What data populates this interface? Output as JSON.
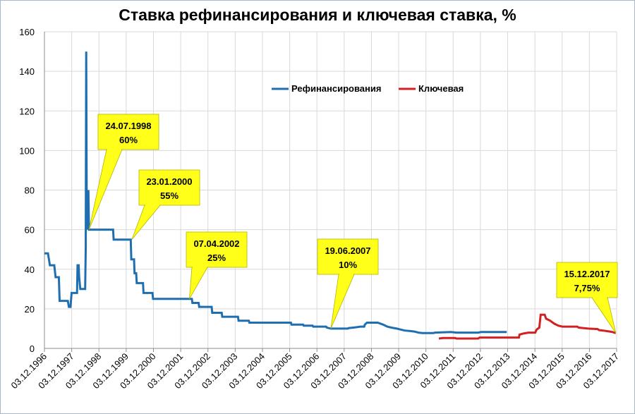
{
  "chart_data": {
    "type": "line",
    "title": "Ставка рефинансирования и ключевая ставка, %",
    "ylim": [
      0,
      160
    ],
    "yticks": [
      0,
      20,
      40,
      60,
      80,
      100,
      120,
      140,
      160
    ],
    "xlim": [
      1996.92,
      2018.0
    ],
    "xtick_labels": [
      "03.12.1996",
      "03.12.1997",
      "03.12.1998",
      "03.12.1999",
      "03.12.2000",
      "03.12.2001",
      "03.12.2002",
      "03.12.2003",
      "03.12.2004",
      "03.12.2005",
      "03.12.2006",
      "03.12.2007",
      "03.12.2008",
      "03.12.2009",
      "03.12.2010",
      "03.12.2011",
      "03.12.2012",
      "03.12.2013",
      "03.12.2014",
      "03.12.2015",
      "03.12.2016",
      "03.12.2017"
    ],
    "grid": true,
    "legend_position": "top-right",
    "series": [
      {
        "name": "Рефинансирования",
        "color": "#1f6fb0",
        "points": [
          [
            1996.92,
            48
          ],
          [
            1997.05,
            48
          ],
          [
            1997.12,
            42
          ],
          [
            1997.28,
            42
          ],
          [
            1997.33,
            36
          ],
          [
            1997.45,
            36
          ],
          [
            1997.48,
            24
          ],
          [
            1997.78,
            24
          ],
          [
            1997.82,
            21
          ],
          [
            1997.88,
            21
          ],
          [
            1997.92,
            28
          ],
          [
            1998.12,
            28
          ],
          [
            1998.14,
            42
          ],
          [
            1998.18,
            42
          ],
          [
            1998.2,
            36
          ],
          [
            1998.24,
            30
          ],
          [
            1998.42,
            30
          ],
          [
            1998.44,
            50
          ],
          [
            1998.46,
            150
          ],
          [
            1998.48,
            60
          ],
          [
            1998.5,
            80
          ],
          [
            1998.52,
            60
          ],
          [
            1998.54,
            80
          ],
          [
            1998.56,
            60
          ],
          [
            1999.45,
            60
          ],
          [
            1999.47,
            55
          ],
          [
            2000.1,
            55
          ],
          [
            2000.12,
            45
          ],
          [
            2000.22,
            45
          ],
          [
            2000.24,
            38
          ],
          [
            2000.3,
            38
          ],
          [
            2000.32,
            33
          ],
          [
            2000.55,
            33
          ],
          [
            2000.57,
            28
          ],
          [
            2000.9,
            28
          ],
          [
            2000.92,
            25
          ],
          [
            2002.35,
            25
          ],
          [
            2002.37,
            23
          ],
          [
            2002.6,
            23
          ],
          [
            2002.62,
            21
          ],
          [
            2003.08,
            21
          ],
          [
            2003.1,
            18
          ],
          [
            2003.45,
            18
          ],
          [
            2003.47,
            16
          ],
          [
            2004.05,
            16
          ],
          [
            2004.07,
            14
          ],
          [
            2004.45,
            14
          ],
          [
            2004.47,
            13
          ],
          [
            2006.0,
            13
          ],
          [
            2006.02,
            12
          ],
          [
            2006.45,
            12
          ],
          [
            2006.47,
            11.5
          ],
          [
            2006.8,
            11.5
          ],
          [
            2006.82,
            11
          ],
          [
            2007.3,
            11
          ],
          [
            2007.32,
            10.5
          ],
          [
            2007.47,
            10
          ],
          [
            2008.1,
            10
          ],
          [
            2008.12,
            10.25
          ],
          [
            2008.3,
            10.5
          ],
          [
            2008.45,
            10.75
          ],
          [
            2008.55,
            11
          ],
          [
            2008.7,
            11
          ],
          [
            2008.72,
            12
          ],
          [
            2008.8,
            13
          ],
          [
            2009.2,
            13
          ],
          [
            2009.4,
            12
          ],
          [
            2009.55,
            11
          ],
          [
            2009.7,
            10.5
          ],
          [
            2009.9,
            10
          ],
          [
            2010.05,
            9.5
          ],
          [
            2010.2,
            9
          ],
          [
            2010.4,
            8.75
          ],
          [
            2010.55,
            8.5
          ],
          [
            2010.7,
            8
          ],
          [
            2010.85,
            7.75
          ],
          [
            2011.25,
            7.75
          ],
          [
            2011.3,
            8
          ],
          [
            2011.9,
            8.25
          ],
          [
            2012.1,
            8
          ],
          [
            2012.9,
            8
          ],
          [
            2013.0,
            8.25
          ],
          [
            2013.95,
            8.25
          ]
        ]
      },
      {
        "name": "Ключевая",
        "color": "#d32020",
        "points": [
          [
            2011.45,
            5
          ],
          [
            2011.6,
            5.25
          ],
          [
            2012.05,
            5.25
          ],
          [
            2012.1,
            5
          ],
          [
            2012.9,
            5
          ],
          [
            2012.95,
            5.5
          ],
          [
            2014.4,
            5.5
          ],
          [
            2014.42,
            7
          ],
          [
            2014.55,
            7.5
          ],
          [
            2014.75,
            8
          ],
          [
            2015.0,
            8
          ],
          [
            2015.05,
            9.5
          ],
          [
            2015.15,
            10.5
          ],
          [
            2015.2,
            17
          ],
          [
            2015.35,
            17
          ],
          [
            2015.4,
            15
          ],
          [
            2015.55,
            14
          ],
          [
            2015.7,
            12.5
          ],
          [
            2015.85,
            11.5
          ],
          [
            2016.0,
            11
          ],
          [
            2016.55,
            11
          ],
          [
            2016.6,
            10.5
          ],
          [
            2016.95,
            10
          ],
          [
            2017.3,
            9.75
          ],
          [
            2017.35,
            9.25
          ],
          [
            2017.5,
            9
          ],
          [
            2017.75,
            8.5
          ],
          [
            2017.85,
            8.25
          ],
          [
            2017.97,
            7.75
          ]
        ]
      }
    ],
    "annotations": [
      {
        "date": "24.07.1998",
        "value": "60%",
        "x": 1998.56,
        "y": 60,
        "color": "#ffff1a"
      },
      {
        "date": "23.01.2000",
        "value": "55%",
        "x": 2000.14,
        "y": 55,
        "color": "#ffff1a"
      },
      {
        "date": "07.04.2002",
        "value": "25%",
        "x": 2002.26,
        "y": 25,
        "color": "#ffff1a"
      },
      {
        "date": "19.06.2007",
        "value": "10%",
        "x": 2007.47,
        "y": 10,
        "color": "#ffff1a"
      },
      {
        "date": "15.12.2017",
        "value": "7,75%",
        "x": 2017.97,
        "y": 7.75,
        "color": "#ffff1a"
      }
    ]
  }
}
